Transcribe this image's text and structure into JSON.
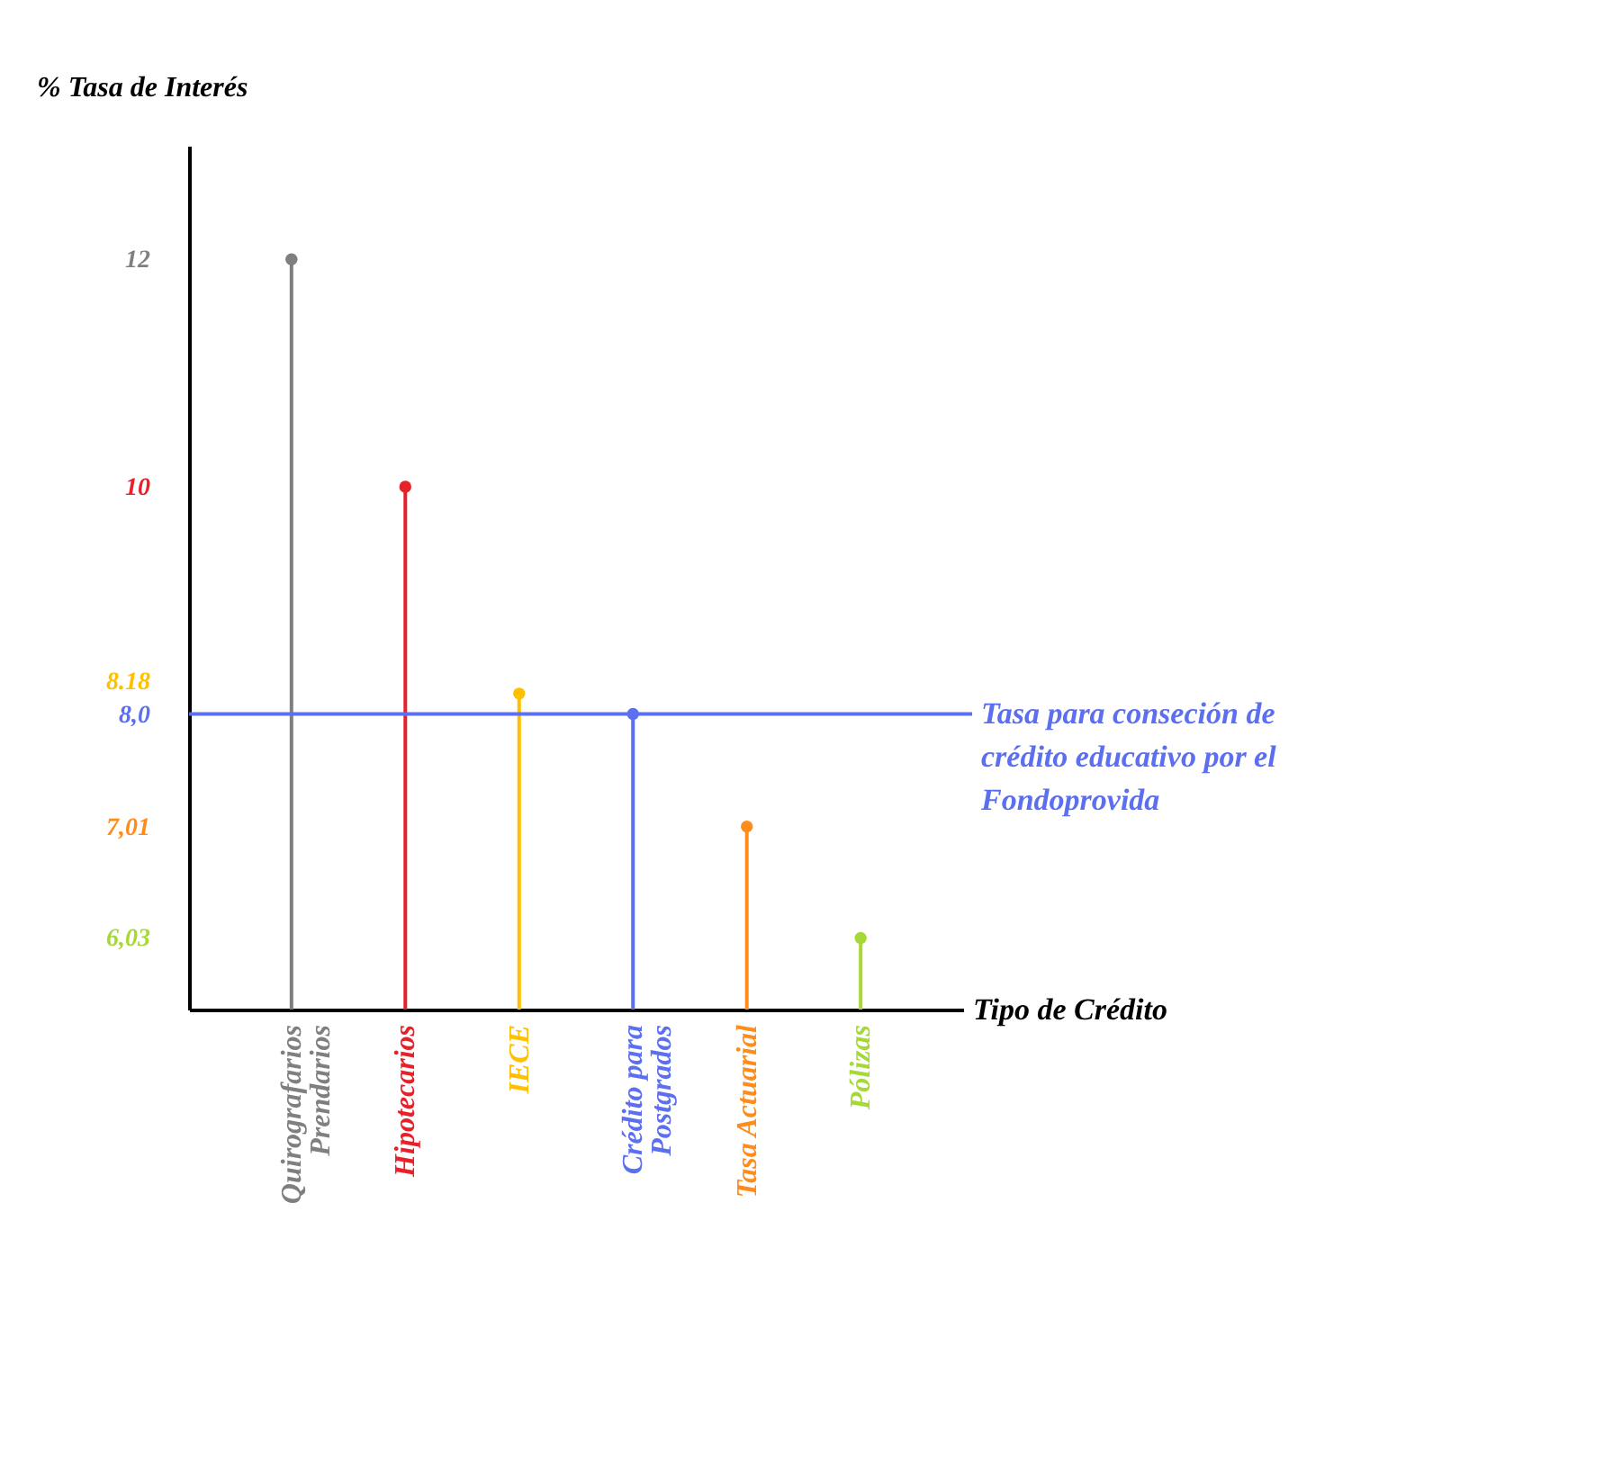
{
  "chart_data": {
    "type": "lollipop",
    "ylabel": "% Tasa de Interés",
    "xlabel": "Tipo de Crédito",
    "categories": [
      "Quirografarios Prendarios",
      "Hipotecarios",
      "IECE",
      "Crédito para Postgrados",
      "Tasa Actuarial",
      "Pólizas"
    ],
    "values": [
      12,
      10,
      8.18,
      8.0,
      7.01,
      6.03
    ],
    "colors": [
      "#7f7f7f",
      "#e8202a",
      "#ffc000",
      "#5b6ff0",
      "#ff8c1a",
      "#a6d936"
    ],
    "ylim": [
      5.4,
      13
    ],
    "yticks": [
      12,
      10,
      8.18,
      {
        "value": 8,
        "label": "8,0"
      },
      {
        "value": 7.01,
        "label": "7,01"
      },
      {
        "value": 6.03,
        "label": "6,03"
      }
    ],
    "ref_lines": [
      {
        "axis": "y",
        "value": 8,
        "label": "Tasa para conseción de crédito educativo por el Fondoprovida",
        "color": "#5b6ff0"
      }
    ],
    "marker": "circle",
    "grid": false
  }
}
